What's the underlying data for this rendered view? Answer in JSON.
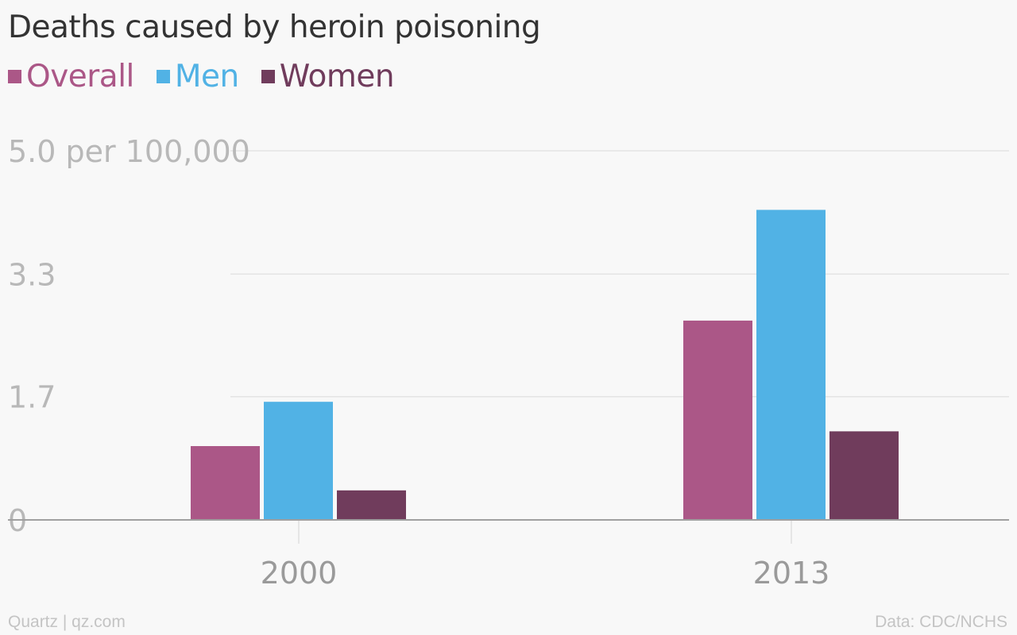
{
  "chart_data": {
    "type": "bar",
    "title": "Deaths caused by heroin poisoning",
    "categories": [
      "2000",
      "2013"
    ],
    "series": [
      {
        "name": "Overall",
        "color": "#ab5787",
        "values": [
          1.0,
          2.7
        ]
      },
      {
        "name": "Men",
        "color": "#51b2e5",
        "values": [
          1.6,
          4.2
        ]
      },
      {
        "name": "Women",
        "color": "#703c5c",
        "values": [
          0.4,
          1.2
        ]
      }
    ],
    "y_ticks": [
      {
        "value": 0,
        "label": "0"
      },
      {
        "value": 1.67,
        "label": "1.7"
      },
      {
        "value": 3.33,
        "label": "3.3"
      },
      {
        "value": 5.0,
        "label": "5.0 per 100,000"
      }
    ],
    "ylim": [
      0,
      5.0
    ],
    "grid": true,
    "legend_position": "top-left"
  },
  "footer": {
    "source_left": "Quartz | qz.com",
    "source_right": "Data: CDC/NCHS"
  }
}
